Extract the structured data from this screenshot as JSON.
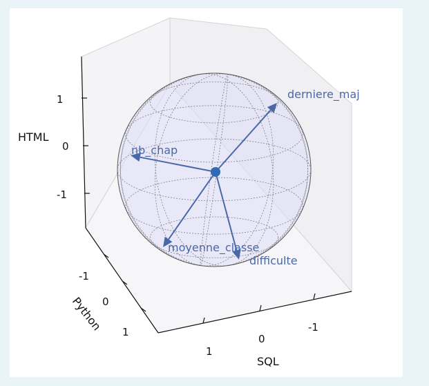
{
  "chart_data": {
    "type": "3d-vector",
    "axes": {
      "x": {
        "label": "SQL",
        "ticks": [
          "-1",
          "0",
          "1"
        ]
      },
      "y": {
        "label": "Python",
        "ticks": [
          "-1",
          "0",
          "1"
        ]
      },
      "z": {
        "label": "HTML",
        "ticks": [
          "1",
          "0",
          "-1"
        ]
      }
    },
    "sphere": {
      "radius": 1,
      "fill": "#dcdcf7",
      "wire": "#555555"
    },
    "origin_color": "#2f6bb5",
    "vector_color": "#4a68a6",
    "vectors": [
      {
        "name": "derniere_maj"
      },
      {
        "name": "nb_chap"
      },
      {
        "name": "moyenne_classe"
      },
      {
        "name": "difficulte"
      }
    ]
  }
}
